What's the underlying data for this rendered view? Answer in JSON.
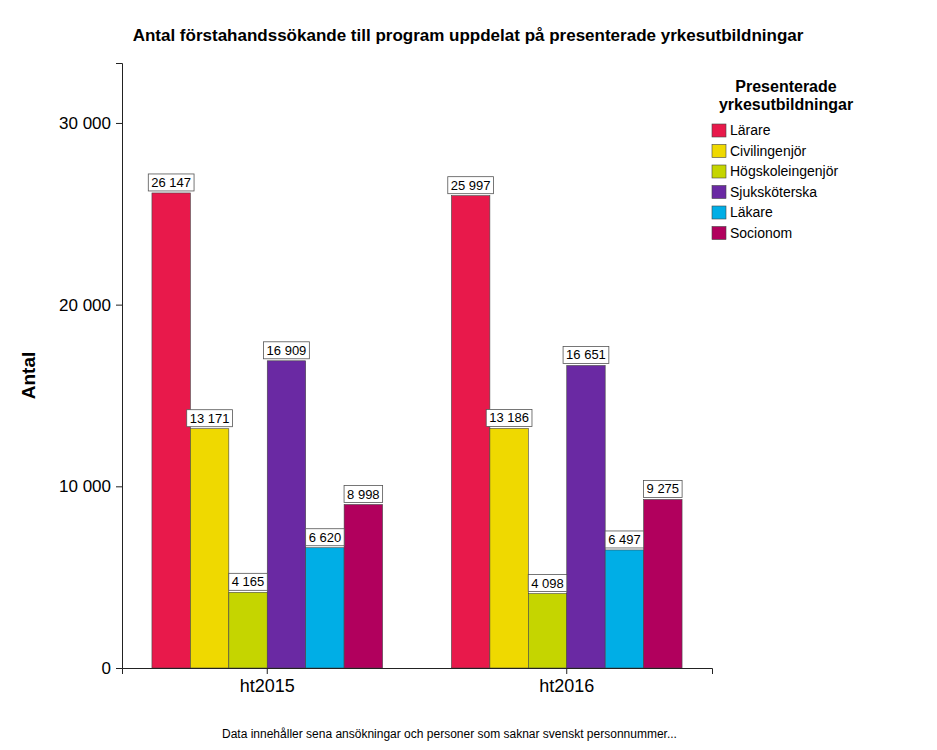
{
  "chart_data": {
    "type": "bar",
    "title": "Antal förstahandssökande till program uppdelat på presenterade yrkesutbildningar",
    "y_label": "Antal",
    "legend_title": "Presenterade yrkesutbildningar",
    "footnote": "Data innehåller sena ansökningar och personer som saknar svenskt personnummer...",
    "categories": [
      "ht2015",
      "ht2016"
    ],
    "series": [
      {
        "name": "Lärare",
        "color": "#e8194b",
        "values": [
          26147,
          25997
        ],
        "value_labels": [
          "26 147",
          "25 997"
        ]
      },
      {
        "name": "Civilingenjör",
        "color": "#efd900",
        "values": [
          13171,
          13186
        ],
        "value_labels": [
          "13 171",
          "13 186"
        ]
      },
      {
        "name": "Högskoleingenjör",
        "color": "#c5d500",
        "values": [
          4165,
          4098
        ],
        "value_labels": [
          "4 165",
          "4 098"
        ]
      },
      {
        "name": "Sjuksköterska",
        "color": "#6a29a3",
        "values": [
          16909,
          16651
        ],
        "value_labels": [
          "16 909",
          "16 651"
        ]
      },
      {
        "name": "Läkare",
        "color": "#00aee6",
        "values": [
          6620,
          6497
        ],
        "value_labels": [
          "6 620",
          "6 497"
        ]
      },
      {
        "name": "Socionom",
        "color": "#b1005d",
        "values": [
          8998,
          9275
        ],
        "value_labels": [
          "8 998",
          "9 275"
        ]
      }
    ],
    "ylim": [
      0,
      33300
    ],
    "yticks": [
      0,
      {
        "value": 10000,
        "label": "10 000"
      },
      {
        "value": 20000,
        "label": "20 000"
      },
      {
        "value": 30000,
        "label": "30 000"
      }
    ],
    "grid": false,
    "legend": "top-right",
    "data_labels": true
  }
}
